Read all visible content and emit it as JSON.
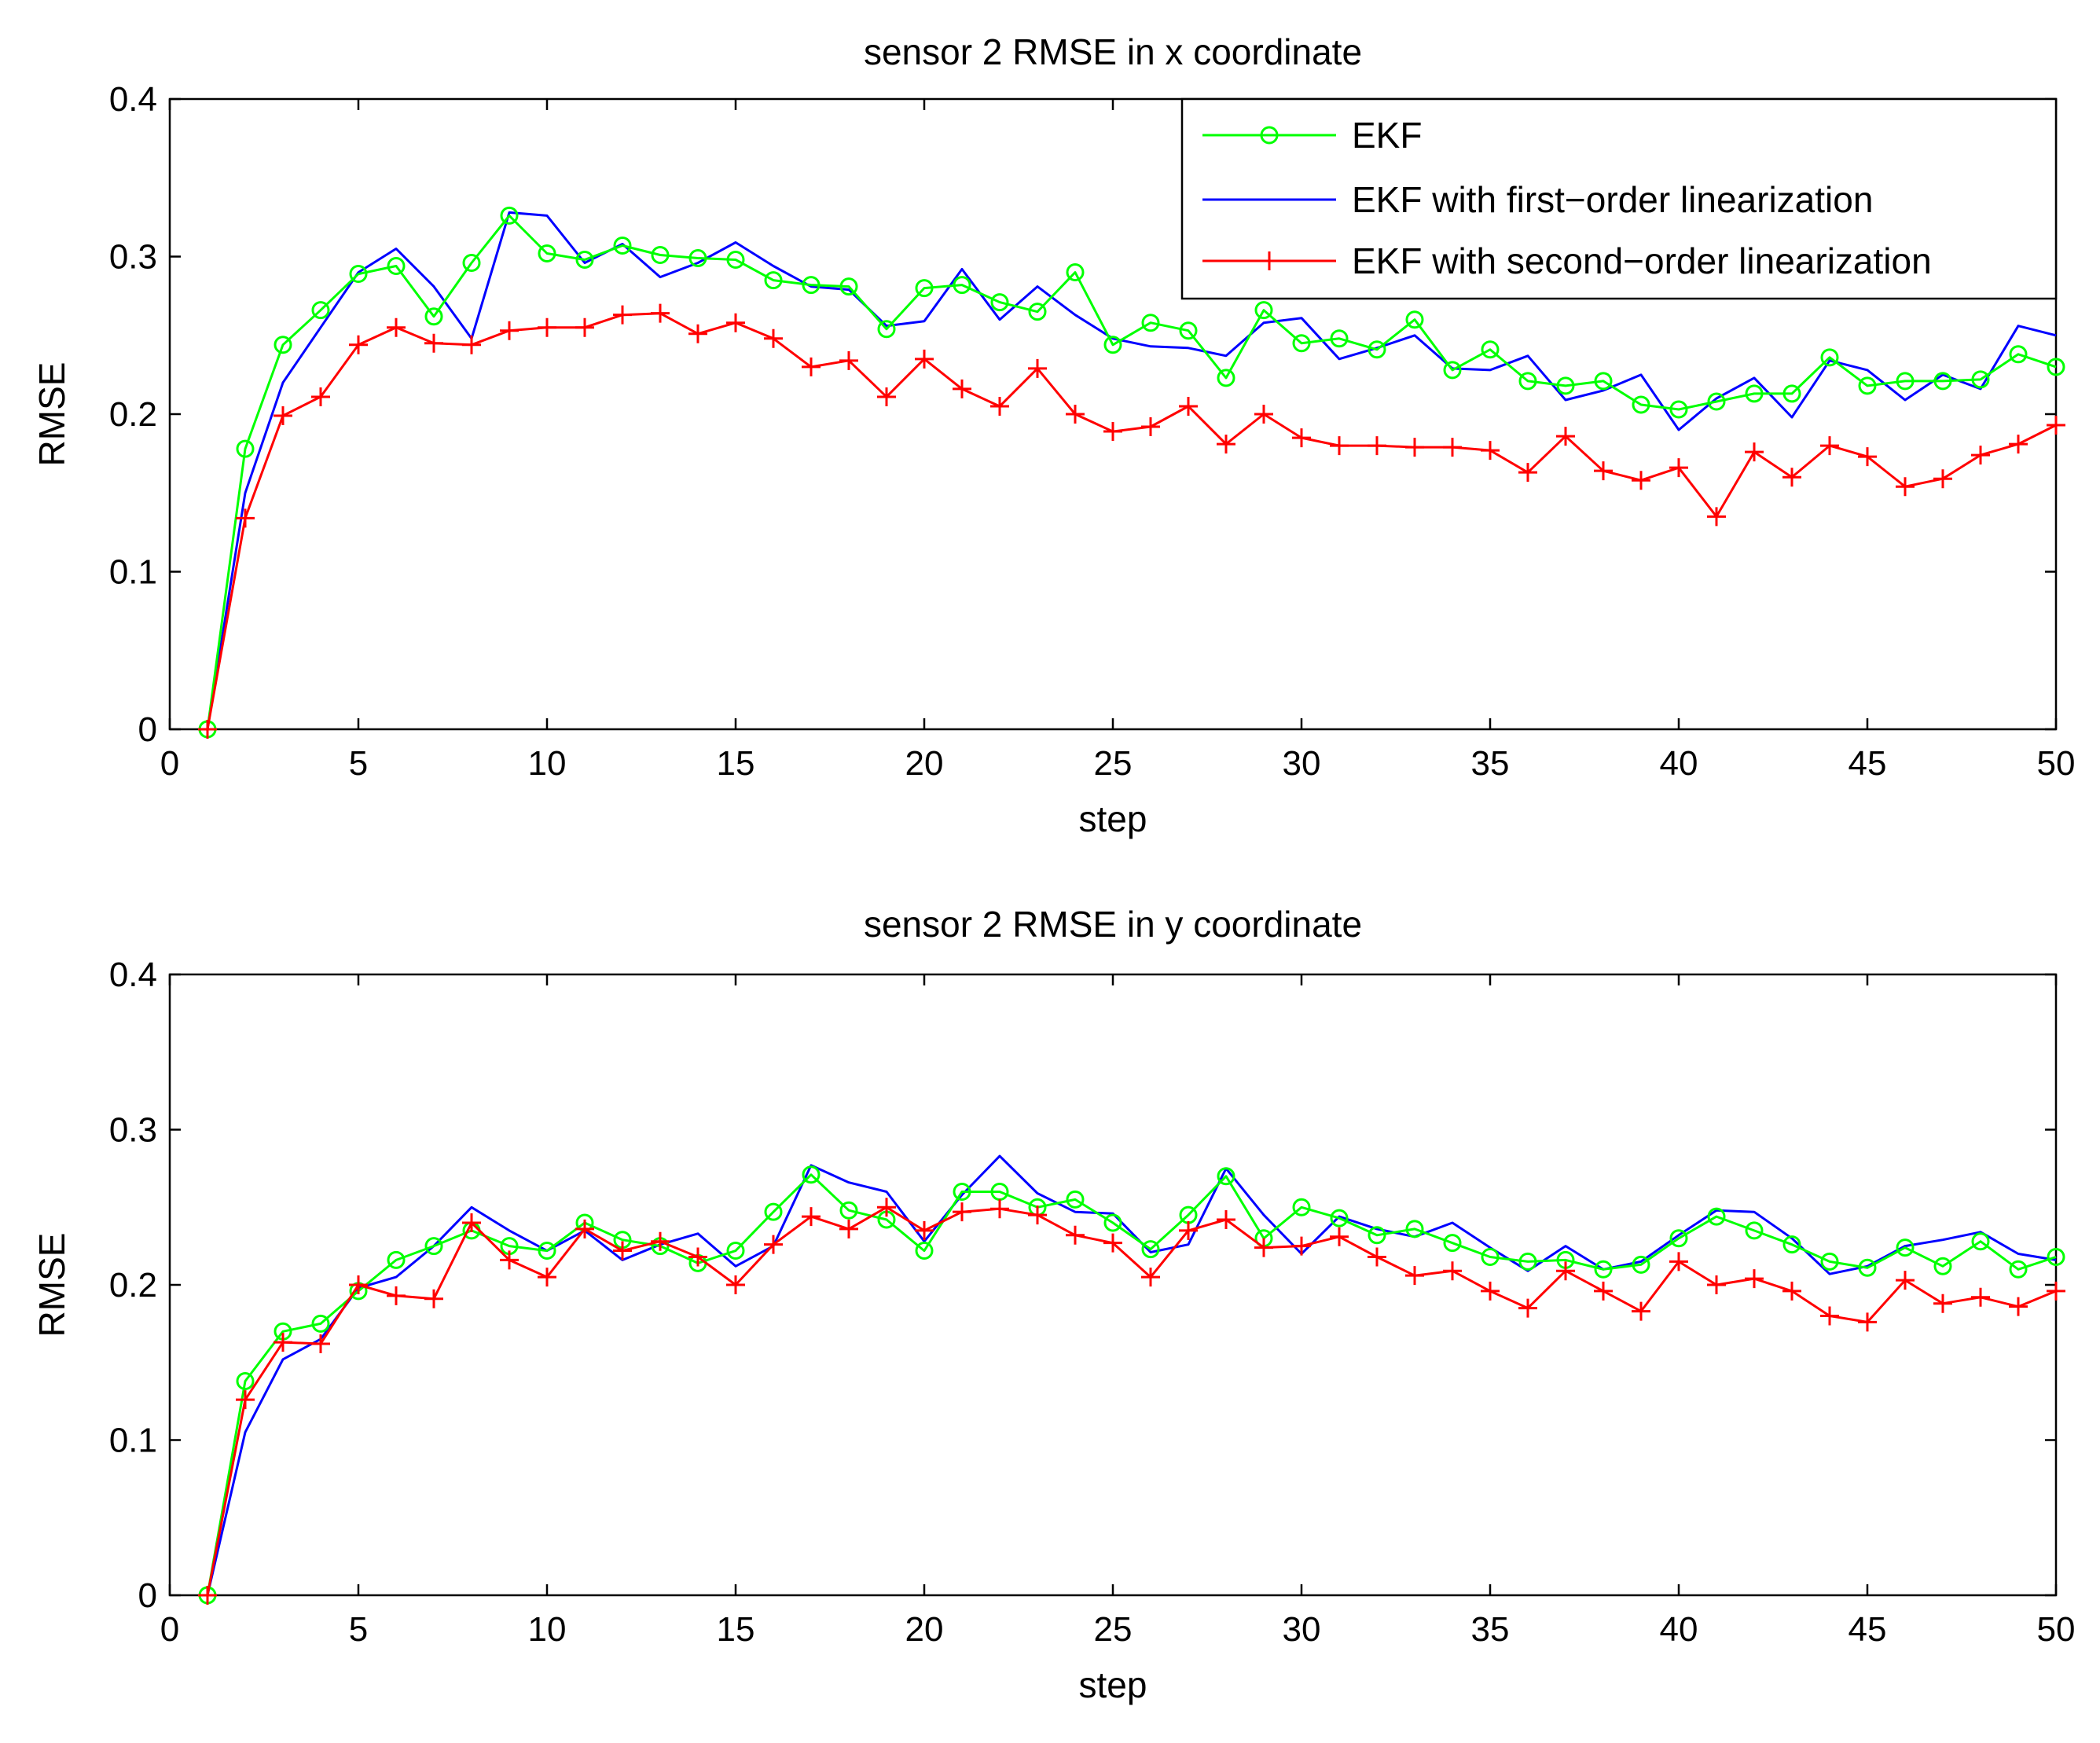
{
  "chart_data": [
    {
      "type": "line",
      "title": "sensor 2 RMSE in x coordinate",
      "xlabel": "step",
      "ylabel": "RMSE",
      "xlim": [
        0,
        50
      ],
      "ylim": [
        0,
        0.4
      ],
      "xticks": [
        0,
        5,
        10,
        15,
        20,
        25,
        30,
        35,
        40,
        45,
        50
      ],
      "yticks": [
        0,
        0.1,
        0.2,
        0.3,
        0.4
      ],
      "xtick_labels": [
        "0",
        "5",
        "10",
        "15",
        "20",
        "25",
        "30",
        "35",
        "40",
        "45",
        "50"
      ],
      "ytick_labels": [
        "0",
        "0.1",
        "0.2",
        "0.3",
        "0.4"
      ],
      "grid": false,
      "legend": "top-right",
      "x": [
        1,
        2,
        3,
        4,
        5,
        6,
        7,
        8,
        9,
        10,
        11,
        12,
        13,
        14,
        15,
        16,
        17,
        18,
        19,
        20,
        21,
        22,
        23,
        24,
        25,
        26,
        27,
        28,
        29,
        30,
        31,
        32,
        33,
        34,
        35,
        36,
        37,
        38,
        39,
        40,
        41,
        42,
        43,
        44,
        45,
        46,
        47,
        48,
        49,
        50
      ],
      "series": [
        {
          "name": "EKF",
          "color": "#00ff00",
          "marker": "circle",
          "values": [
            0,
            0.178,
            0.244,
            0.266,
            0.289,
            0.294,
            0.262,
            0.296,
            0.326,
            0.302,
            0.298,
            0.307,
            0.301,
            0.299,
            0.298,
            0.285,
            0.282,
            0.281,
            0.254,
            0.28,
            0.282,
            0.271,
            0.265,
            0.29,
            0.244,
            0.258,
            0.253,
            0.223,
            0.266,
            0.245,
            0.248,
            0.241,
            0.26,
            0.228,
            0.241,
            0.221,
            0.218,
            0.221,
            0.206,
            0.203,
            0.208,
            0.213,
            0.213,
            0.236,
            0.218,
            0.221,
            0.221,
            0.222,
            0.238,
            0.23
          ]
        },
        {
          "name": "EKF with first−order linearization",
          "color": "#0000ff",
          "marker": "none",
          "values": [
            0,
            0.15,
            0.22,
            0.255,
            0.29,
            0.305,
            0.281,
            0.248,
            0.328,
            0.326,
            0.296,
            0.308,
            0.287,
            0.296,
            0.309,
            0.294,
            0.281,
            0.279,
            0.256,
            0.259,
            0.292,
            0.26,
            0.281,
            0.263,
            0.248,
            0.243,
            0.242,
            0.237,
            0.258,
            0.261,
            0.235,
            0.242,
            0.25,
            0.229,
            0.228,
            0.237,
            0.209,
            0.215,
            0.225,
            0.19,
            0.21,
            0.223,
            0.198,
            0.234,
            0.228,
            0.209,
            0.225,
            0.216,
            0.256,
            0.25
          ]
        },
        {
          "name": "EKF with second−order linearization",
          "color": "#ff0000",
          "marker": "plus",
          "values": [
            0,
            0.134,
            0.199,
            0.211,
            0.244,
            0.255,
            0.245,
            0.244,
            0.253,
            0.255,
            0.255,
            0.263,
            0.264,
            0.251,
            0.258,
            0.248,
            0.23,
            0.234,
            0.211,
            0.235,
            0.216,
            0.205,
            0.229,
            0.2,
            0.189,
            0.192,
            0.205,
            0.181,
            0.2,
            0.185,
            0.18,
            0.18,
            0.179,
            0.179,
            0.177,
            0.163,
            0.186,
            0.164,
            0.158,
            0.166,
            0.135,
            0.176,
            0.16,
            0.18,
            0.173,
            0.154,
            0.159,
            0.174,
            0.181,
            0.193
          ]
        }
      ]
    },
    {
      "type": "line",
      "title": "sensor 2 RMSE in y coordinate",
      "xlabel": "step",
      "ylabel": "RMSE",
      "xlim": [
        0,
        50
      ],
      "ylim": [
        0,
        0.4
      ],
      "xticks": [
        0,
        5,
        10,
        15,
        20,
        25,
        30,
        35,
        40,
        45,
        50
      ],
      "yticks": [
        0,
        0.1,
        0.2,
        0.3,
        0.4
      ],
      "xtick_labels": [
        "0",
        "5",
        "10",
        "15",
        "20",
        "25",
        "30",
        "35",
        "40",
        "45",
        "50"
      ],
      "ytick_labels": [
        "0",
        "0.1",
        "0.2",
        "0.3",
        "0.4"
      ],
      "grid": false,
      "legend": "none",
      "x": [
        1,
        2,
        3,
        4,
        5,
        6,
        7,
        8,
        9,
        10,
        11,
        12,
        13,
        14,
        15,
        16,
        17,
        18,
        19,
        20,
        21,
        22,
        23,
        24,
        25,
        26,
        27,
        28,
        29,
        30,
        31,
        32,
        33,
        34,
        35,
        36,
        37,
        38,
        39,
        40,
        41,
        42,
        43,
        44,
        45,
        46,
        47,
        48,
        49,
        50
      ],
      "series": [
        {
          "name": "EKF",
          "color": "#00ff00",
          "marker": "circle",
          "values": [
            0,
            0.138,
            0.17,
            0.175,
            0.196,
            0.216,
            0.225,
            0.235,
            0.225,
            0.222,
            0.24,
            0.229,
            0.225,
            0.214,
            0.222,
            0.247,
            0.271,
            0.248,
            0.242,
            0.222,
            0.26,
            0.26,
            0.25,
            0.255,
            0.24,
            0.223,
            0.245,
            0.27,
            0.23,
            0.25,
            0.243,
            0.232,
            0.236,
            0.227,
            0.218,
            0.215,
            0.216,
            0.21,
            0.213,
            0.23,
            0.244,
            0.235,
            0.226,
            0.215,
            0.211,
            0.224,
            0.212,
            0.228,
            0.21,
            0.218
          ]
        },
        {
          "name": "EKF with first−order linearization",
          "color": "#0000ff",
          "marker": "none",
          "values": [
            0,
            0.105,
            0.152,
            0.165,
            0.198,
            0.205,
            0.225,
            0.25,
            0.235,
            0.222,
            0.235,
            0.216,
            0.226,
            0.233,
            0.212,
            0.225,
            0.277,
            0.266,
            0.26,
            0.228,
            0.258,
            0.283,
            0.259,
            0.247,
            0.246,
            0.221,
            0.226,
            0.275,
            0.245,
            0.22,
            0.244,
            0.236,
            0.231,
            0.24,
            0.224,
            0.209,
            0.225,
            0.21,
            0.215,
            0.232,
            0.248,
            0.247,
            0.23,
            0.207,
            0.212,
            0.225,
            0.229,
            0.234,
            0.22,
            0.216
          ]
        },
        {
          "name": "EKF with second−order linearization",
          "color": "#ff0000",
          "marker": "plus",
          "values": [
            0,
            0.126,
            0.163,
            0.162,
            0.2,
            0.193,
            0.191,
            0.24,
            0.216,
            0.205,
            0.236,
            0.222,
            0.228,
            0.218,
            0.2,
            0.226,
            0.244,
            0.236,
            0.25,
            0.235,
            0.247,
            0.249,
            0.245,
            0.232,
            0.227,
            0.205,
            0.235,
            0.242,
            0.224,
            0.225,
            0.231,
            0.218,
            0.206,
            0.209,
            0.196,
            0.185,
            0.209,
            0.196,
            0.183,
            0.215,
            0.2,
            0.204,
            0.196,
            0.18,
            0.176,
            0.203,
            0.188,
            0.192,
            0.186,
            0.196
          ]
        }
      ]
    }
  ]
}
